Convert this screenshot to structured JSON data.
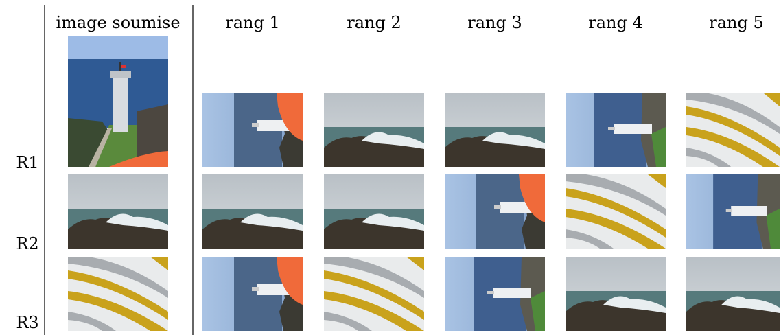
{
  "header": {
    "query": "image soumise",
    "ranks": [
      "rang 1",
      "rang 2",
      "rang 3",
      "rang 4",
      "rang 5"
    ]
  },
  "rows": [
    {
      "label": "R1"
    },
    {
      "label": "R2"
    },
    {
      "label": "R3"
    }
  ]
}
